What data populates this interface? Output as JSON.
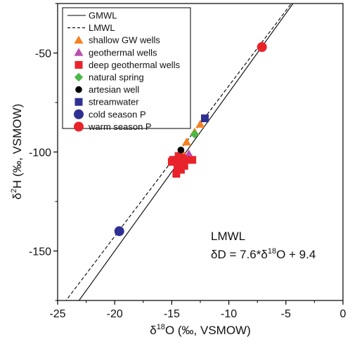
{
  "chart_data": {
    "type": "scatter",
    "xlabel": "δ18O (‰, VSMOW)",
    "ylabel": "δ2H (‰, VSMOW)",
    "xlabel_parts": {
      "pre": "δ",
      "sup": "18",
      "post": "O (‰, VSMOW)"
    },
    "ylabel_parts": {
      "pre": "δ",
      "sup": "2",
      "post": "H (‰, VSMOW)"
    },
    "xlim": [
      -25,
      0
    ],
    "ylim": [
      -175,
      -25
    ],
    "x_ticks": [
      -25,
      -20,
      -15,
      -10,
      -5,
      0
    ],
    "x_tick_labels": [
      "-25",
      "-20",
      "-15",
      "-10",
      "-5",
      "0"
    ],
    "y_ticks": [
      -150,
      -100,
      -50
    ],
    "y_tick_labels": [
      "-150",
      "-100",
      "-50"
    ],
    "grid": false,
    "legend_position": "top-left",
    "lines": [
      {
        "name": "GMWL",
        "style": "solid",
        "color": "#000000",
        "slope": 8,
        "intercept": 10
      },
      {
        "name": "LMWL",
        "style": "dashed",
        "color": "#000000",
        "slope": 7.6,
        "intercept": 9.4
      }
    ],
    "series": [
      {
        "name": "shallow GW wells",
        "marker": "triangle",
        "color": "#F5821F",
        "points": [
          [
            -12.5,
            -86
          ],
          [
            -13.0,
            -90
          ],
          [
            -13.7,
            -95
          ],
          [
            -14.0,
            -101
          ]
        ]
      },
      {
        "name": "geothermal wells",
        "marker": "triangle",
        "color": "#B84FB0",
        "points": [
          [
            -13.5,
            -101
          ],
          [
            -13.9,
            -103
          ],
          [
            -14.2,
            -104
          ]
        ]
      },
      {
        "name": "deep geothermal wells",
        "marker": "square",
        "color": "#E8232A",
        "points": [
          [
            -14.9,
            -104
          ],
          [
            -14.7,
            -104
          ],
          [
            -14.4,
            -102
          ],
          [
            -14.1,
            -103
          ],
          [
            -13.8,
            -104
          ],
          [
            -13.2,
            -104
          ],
          [
            -14.3,
            -106
          ],
          [
            -13.9,
            -107
          ],
          [
            -14.5,
            -108
          ],
          [
            -14.2,
            -109
          ],
          [
            -14.6,
            -111
          ],
          [
            -15.0,
            -105
          ]
        ]
      },
      {
        "name": "natural spring",
        "marker": "diamond",
        "color": "#4CB848",
        "points": [
          [
            -13.0,
            -91
          ]
        ]
      },
      {
        "name": "artesian well",
        "marker": "circle",
        "color": "#000000",
        "points": [
          [
            -14.2,
            -99
          ]
        ]
      },
      {
        "name": "streamwater",
        "marker": "square",
        "color": "#2E3192",
        "points": [
          [
            -12.1,
            -83
          ]
        ]
      },
      {
        "name": "cold season P",
        "marker": "circle-large",
        "color": "#2E3192",
        "points": [
          [
            -19.6,
            -140
          ]
        ]
      },
      {
        "name": "warm season P",
        "marker": "circle-large",
        "color": "#E8232A",
        "points": [
          [
            -7.1,
            -47
          ]
        ]
      }
    ],
    "annotation": {
      "title": "LMWL",
      "equation_parts": {
        "a": "δD = 7.6*δ",
        "sup": "18",
        "b": "O + 9.4"
      }
    }
  }
}
